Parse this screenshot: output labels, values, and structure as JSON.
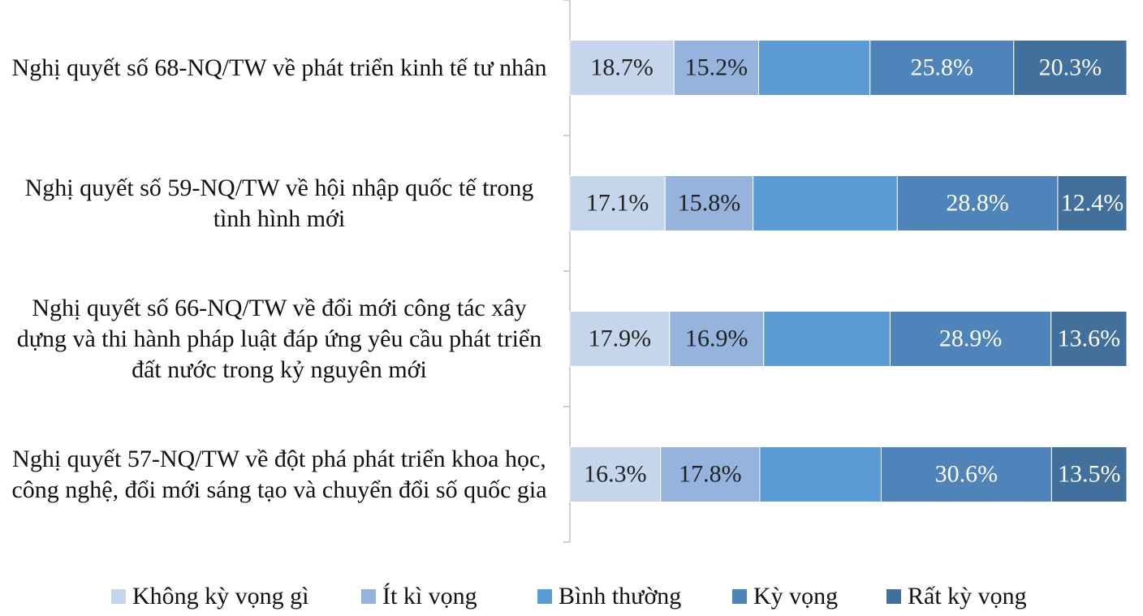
{
  "chart_data": {
    "type": "stacked-bar-horizontal",
    "categories": [
      "Nghị quyết số 68-NQ/TW về phát triển kinh tế tư nhân",
      "Nghị quyết số 59-NQ/TW về hội nhập quốc tế trong tình hình mới",
      "Nghị quyết số 66-NQ/TW về đổi mới công tác xây dựng và thi hành pháp luật đáp ứng yêu cầu phát triển đất nước trong kỷ nguyên mới",
      "Nghị quyết 57-NQ/TW về đột phá phát triển khoa học, công nghệ, đổi mới sáng tạo và chuyển đổi số quốc gia"
    ],
    "xlim": [
      0,
      100
    ],
    "legend": "bottom",
    "series": [
      {
        "name": "Không kỳ vọng gì",
        "color": "#c5d5ec",
        "label_color": "#222222",
        "values": [
          18.7,
          17.1,
          17.9,
          16.3
        ],
        "value_labels": [
          "18.7%",
          "17.1%",
          "17.9%",
          "16.3%"
        ]
      },
      {
        "name": "Ít kì vọng",
        "color": "#95b3dc",
        "label_color": "#222222",
        "values": [
          15.2,
          15.8,
          16.9,
          17.8
        ],
        "value_labels": [
          "15.2%",
          "15.8%",
          "16.9%",
          "17.8%"
        ]
      },
      {
        "name": "Bình thường",
        "color": "#5b9bd5",
        "label_color": "#ffffff",
        "values": [
          20.0,
          25.9,
          22.7,
          21.8
        ],
        "value_labels": [
          null,
          null,
          null,
          null
        ]
      },
      {
        "name": "Kỳ vọng",
        "color": "#4f84bb",
        "label_color": "#ffffff",
        "values": [
          25.8,
          28.8,
          28.9,
          30.6
        ],
        "value_labels": [
          "25.8%",
          "28.8%",
          "28.9%",
          "30.6%"
        ]
      },
      {
        "name": "Rất kỳ vọng",
        "color": "#41709c",
        "label_color": "#ffffff",
        "values": [
          20.3,
          12.4,
          13.6,
          13.5
        ],
        "value_labels": [
          "20.3%",
          "12.4%",
          "13.6%",
          "13.5%"
        ]
      }
    ]
  }
}
